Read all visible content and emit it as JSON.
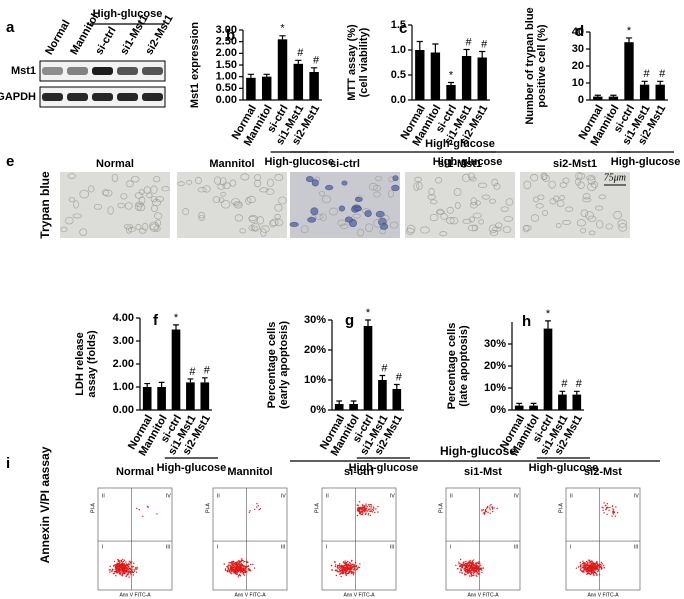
{
  "chart_data": [
    {
      "type": "bar",
      "panel": "b",
      "ylabel": [
        "Mst1 expression"
      ],
      "categories": [
        "Normal",
        "Mannitol",
        "si-ctrl",
        "si1-Mst1",
        "si2-Mst1"
      ],
      "values": [
        0.95,
        1.0,
        2.6,
        1.55,
        1.2
      ],
      "errors": [
        0.15,
        0.1,
        0.15,
        0.15,
        0.18
      ],
      "annotations": [
        null,
        null,
        "*",
        "#",
        "#"
      ],
      "group_label": "High-glucose",
      "color": "#000000",
      "ylim": [
        0,
        3
      ],
      "yticks": [
        {
          "value": 0,
          "label": "0.00"
        },
        {
          "value": 0.5,
          "label": "0.50"
        },
        {
          "value": 1,
          "label": "1.00"
        },
        {
          "value": 1.5,
          "label": "1.50"
        },
        {
          "value": 2,
          "label": "2.00"
        },
        {
          "value": 2.5,
          "label": "2.50"
        },
        {
          "value": 3,
          "label": "3.00"
        }
      ]
    },
    {
      "type": "bar",
      "panel": "c",
      "ylabel": [
        "MTT assay (%)",
        "(cell viability)"
      ],
      "categories": [
        "Normal",
        "Mannitol",
        "si-ctrl",
        "si1-Mst1",
        "si2-Mst1"
      ],
      "values": [
        1.0,
        0.95,
        0.3,
        0.88,
        0.85
      ],
      "errors": [
        0.17,
        0.17,
        0.05,
        0.13,
        0.12
      ],
      "annotations": [
        null,
        null,
        "*",
        "#",
        "#"
      ],
      "group_label": "High-glucose",
      "color": "#000000",
      "ylim": [
        0,
        1.5
      ],
      "yticks": [
        {
          "value": 0,
          "label": "0.0"
        },
        0.5,
        {
          "value": 1,
          "label": "1.0"
        },
        1.5
      ]
    },
    {
      "type": "bar",
      "panel": "d",
      "ylabel": [
        "Number of trypan blue",
        "positive cell (%)"
      ],
      "categories": [
        "Normal",
        "Mannitol",
        "si-ctrl",
        "si1-Mst1",
        "si2-Mst1"
      ],
      "values": [
        2,
        2,
        34,
        9,
        9
      ],
      "errors": [
        0.8,
        0.8,
        2.5,
        2,
        2
      ],
      "annotations": [
        null,
        null,
        "*",
        "#",
        "#"
      ],
      "group_label": "High-glucose",
      "color": "#000000",
      "ylim": [
        0,
        40
      ],
      "yticks": [
        0,
        10,
        20,
        30,
        40
      ]
    },
    {
      "type": "bar",
      "panel": "f",
      "ylabel": [
        "LDH release",
        "assay (folds)"
      ],
      "categories": [
        "Normal",
        "Mannitol",
        "si-ctrl",
        "si1-Mst1",
        "si2-Mst1"
      ],
      "values": [
        1.0,
        1.0,
        3.5,
        1.2,
        1.2
      ],
      "errors": [
        0.15,
        0.2,
        0.2,
        0.15,
        0.2
      ],
      "annotations": [
        null,
        null,
        "*",
        "#",
        "#"
      ],
      "group_label": "High-glucose",
      "color": "#000000",
      "ylim": [
        0,
        4
      ],
      "yticks": [
        {
          "value": 0,
          "label": "0.00"
        },
        {
          "value": 1,
          "label": "1.00"
        },
        {
          "value": 2,
          "label": "2.00"
        },
        {
          "value": 3,
          "label": "3.00"
        },
        {
          "value": 4,
          "label": "4.00"
        }
      ]
    },
    {
      "type": "bar",
      "panel": "g",
      "ylabel": [
        "Percentage cells",
        "(early apoptosis)"
      ],
      "categories": [
        "Normal",
        "Mannitol",
        "si-ctrl",
        "si1-Mst1",
        "si2-Mst1"
      ],
      "values": [
        2,
        2,
        28,
        10,
        7
      ],
      "errors": [
        1,
        1,
        2,
        1.5,
        1.5
      ],
      "annotations": [
        null,
        null,
        "*",
        "#",
        "#"
      ],
      "group_label": "High-glucose",
      "color": "#000000",
      "ylim": [
        0,
        30
      ],
      "yticks": [
        {
          "value": 0,
          "label": "0%"
        },
        {
          "value": 10,
          "label": "10%"
        },
        {
          "value": 20,
          "label": "20%"
        },
        {
          "value": 30,
          "label": "30%"
        }
      ]
    },
    {
      "type": "bar",
      "panel": "h",
      "ylabel": [
        "Percentage cells",
        "(late apoptosis)"
      ],
      "categories": [
        "Normal",
        "Mannitol",
        "si-ctrl",
        "si1-Mst1",
        "si2-Mst1"
      ],
      "values": [
        2,
        2,
        37,
        7,
        7
      ],
      "errors": [
        1,
        1,
        3.5,
        1.5,
        1.5
      ],
      "annotations": [
        null,
        null,
        "*",
        "#",
        "#"
      ],
      "group_label": "High-glucose",
      "color": "#000000",
      "ylim": [
        0,
        40
      ],
      "yticks": [
        {
          "value": 0,
          "label": "0%"
        },
        {
          "value": 10,
          "label": "10%"
        },
        {
          "value": 20,
          "label": "20%"
        },
        {
          "value": 30,
          "label": "30%"
        }
      ]
    }
  ],
  "panel_a": {
    "label": "a",
    "group_label": "High-glucose",
    "lanes": [
      "Normal",
      "Mannitol",
      "si-ctrl",
      "si1-Mst1",
      "si2-Mst1"
    ],
    "rows": [
      "Mst1",
      "GAPDH"
    ]
  },
  "panel_e": {
    "label": "e",
    "row_label": "Trypan blue",
    "group_label": "High-glucose",
    "columns": [
      "Normal",
      "Mannitol",
      "si-ctrl",
      "si1-Mst1",
      "si2-Mst1"
    ],
    "scale_bar": "75μm"
  },
  "panel_i": {
    "label": "i",
    "row_label": "Annexin V/PI aassay",
    "group_label": "High-glucose",
    "columns": [
      "Normal",
      "Mannitol",
      "si-ctrl",
      "si1-Mst",
      "si2-Mst"
    ],
    "x_axis": "Ann V FITC-A",
    "y_axis": "PI-A",
    "quadrants": [
      "I",
      "II",
      "III",
      "IV"
    ]
  }
}
